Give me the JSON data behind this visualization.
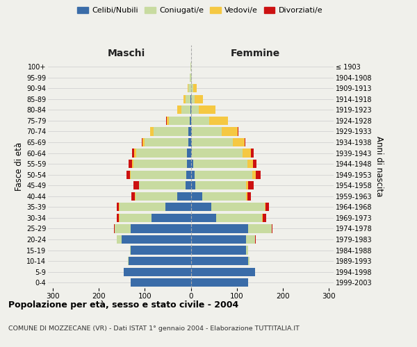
{
  "age_groups": [
    "0-4",
    "5-9",
    "10-14",
    "15-19",
    "20-24",
    "25-29",
    "30-34",
    "35-39",
    "40-44",
    "45-49",
    "50-54",
    "55-59",
    "60-64",
    "65-69",
    "70-74",
    "75-79",
    "80-84",
    "85-89",
    "90-94",
    "95-99",
    "100+"
  ],
  "birth_years": [
    "1999-2003",
    "1994-1998",
    "1989-1993",
    "1984-1988",
    "1979-1983",
    "1974-1978",
    "1969-1973",
    "1964-1968",
    "1959-1963",
    "1954-1958",
    "1949-1953",
    "1944-1948",
    "1939-1943",
    "1934-1938",
    "1929-1933",
    "1924-1928",
    "1919-1923",
    "1914-1918",
    "1909-1913",
    "1904-1908",
    "≤ 1903"
  ],
  "males": {
    "celibe": [
      130,
      145,
      135,
      130,
      150,
      130,
      85,
      55,
      30,
      12,
      10,
      9,
      8,
      5,
      5,
      2,
      1,
      1,
      0,
      0,
      0
    ],
    "coniugato": [
      0,
      0,
      1,
      2,
      10,
      35,
      70,
      100,
      90,
      100,
      120,
      115,
      110,
      95,
      75,
      45,
      20,
      10,
      5,
      2,
      1
    ],
    "vedovo": [
      0,
      0,
      0,
      0,
      0,
      0,
      1,
      1,
      1,
      1,
      2,
      3,
      5,
      5,
      8,
      5,
      8,
      5,
      2,
      0,
      0
    ],
    "divorziato": [
      0,
      0,
      0,
      0,
      1,
      2,
      5,
      5,
      8,
      12,
      8,
      8,
      5,
      1,
      1,
      2,
      0,
      0,
      0,
      0,
      0
    ]
  },
  "females": {
    "nubile": [
      125,
      140,
      125,
      120,
      120,
      125,
      55,
      45,
      25,
      10,
      8,
      5,
      3,
      2,
      2,
      0,
      0,
      0,
      0,
      0,
      0
    ],
    "coniugata": [
      0,
      0,
      2,
      5,
      20,
      50,
      100,
      115,
      95,
      110,
      125,
      118,
      110,
      90,
      65,
      40,
      18,
      8,
      5,
      2,
      1
    ],
    "vedova": [
      0,
      0,
      0,
      0,
      0,
      0,
      1,
      2,
      3,
      5,
      8,
      12,
      18,
      25,
      35,
      40,
      35,
      18,
      8,
      1,
      0
    ],
    "divorziata": [
      0,
      0,
      0,
      0,
      1,
      2,
      8,
      8,
      8,
      12,
      10,
      8,
      6,
      2,
      2,
      1,
      0,
      0,
      0,
      0,
      0
    ]
  },
  "colors": {
    "celibe": "#3a6ca8",
    "coniugato": "#c8dba0",
    "vedovo": "#f5c842",
    "divorziato": "#cc1111"
  },
  "xlim": 310,
  "title": "Popolazione per età, sesso e stato civile - 2004",
  "subtitle": "COMUNE DI MOZZECANE (VR) - Dati ISTAT 1° gennaio 2004 - Elaborazione TUTTITALIA.IT",
  "ylabel_left": "Fasce di età",
  "ylabel_right": "Anni di nascita",
  "xlabel_left": "Maschi",
  "xlabel_right": "Femmine",
  "background_color": "#f0f0eb",
  "grid_color": "#cccccc",
  "legend_labels": [
    "Celibi/Nubili",
    "Coniugati/e",
    "Vedovi/e",
    "Divorziati/e"
  ]
}
